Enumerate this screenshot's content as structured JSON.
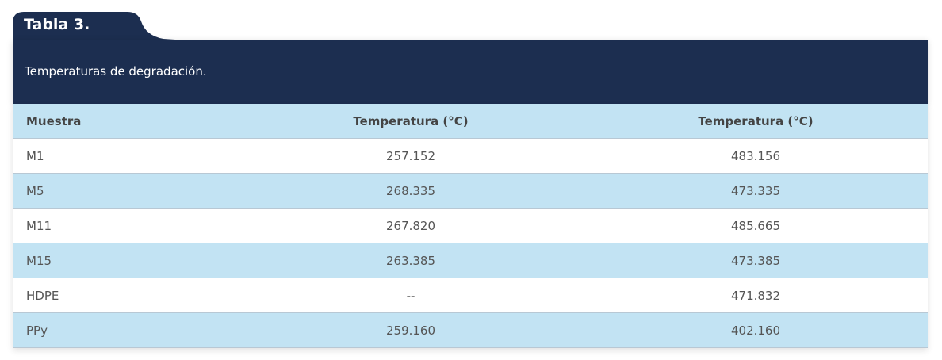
{
  "table": {
    "label": "Tabla 3.",
    "caption": "Temperaturas de degradación.",
    "header": [
      "Muestra",
      "Temperatura (°C)",
      "Temperatura (°C)"
    ],
    "rows": [
      [
        "M1",
        "257.152",
        "483.156"
      ],
      [
        "M5",
        "268.335",
        "473.335"
      ],
      [
        "M11",
        "267.820",
        "485.665"
      ],
      [
        "M15",
        "263.385",
        "473.385"
      ],
      [
        "HDPE",
        "--",
        "471.832"
      ],
      [
        "PPy",
        "259.160",
        "402.160"
      ]
    ]
  }
}
